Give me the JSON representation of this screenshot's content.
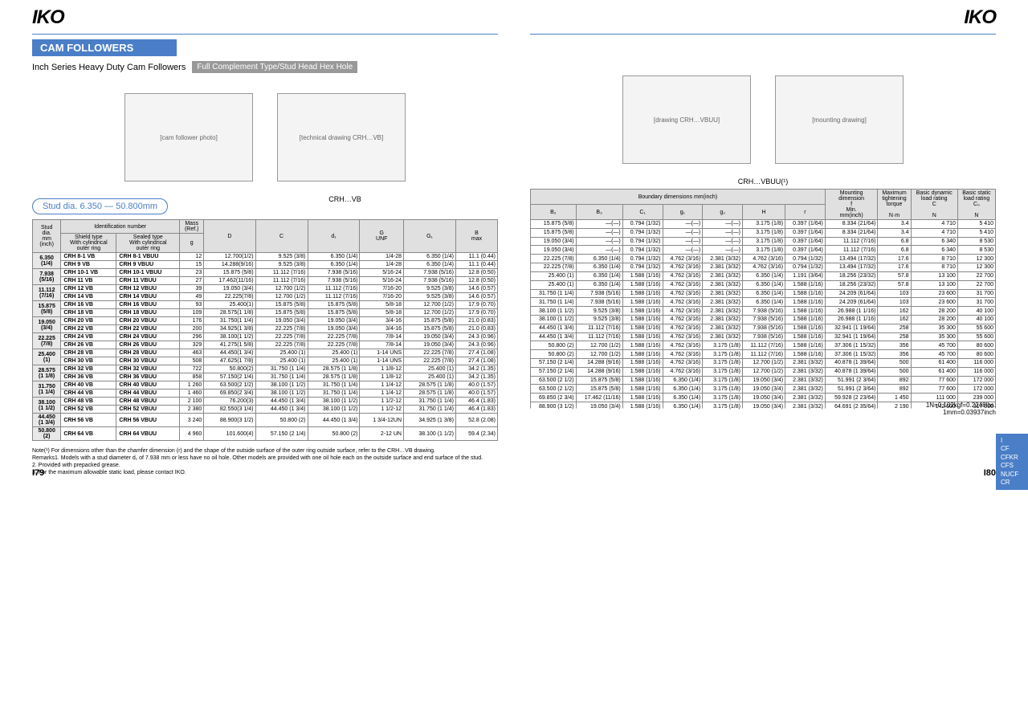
{
  "logo": "IKO",
  "title": "CAM FOLLOWERS",
  "subtitle1": "Inch Series Heavy Duty Cam Followers",
  "subtitle2": "Full Complement Type/Stud Head Hex Hole",
  "rangeLabel": "Stud dia. 6.350 — 50.800mm",
  "diagLabelL": "CRH…VB",
  "diagLabelR": "CRH…VBUU(¹)",
  "headers_left": {
    "stud": "Stud\ndia.\nmm\n(inch)",
    "ident": "Identification number",
    "shield": "Shield type\nWith cylindrical\nouter ring",
    "sealed": "Sealed type\nWith cylindrical\nouter ring",
    "mass": "Mass\n(Ref.)",
    "g": "g",
    "D": "D",
    "C": "C",
    "d1": "d₁",
    "G": "G\nUNF",
    "G1": "G₁",
    "Bmax": "B\nmax"
  },
  "headers_right": {
    "bound": "Boundary dimensions   mm(inch)",
    "B2": "B₂",
    "B3": "B₃",
    "C1": "C₁",
    "g1": "g₁",
    "g2": "g₂",
    "H": "H",
    "r": "r",
    "mount": "Mounting\ndimension\nf\nMin.\nmm(inch)",
    "torque": "Maximum\ntightening\ntorque\n\nN·m",
    "Cdyn": "Basic dynamic\nload rating\nC\n\nN",
    "C0": "Basic static\nload rating\nC₀\n\nN"
  },
  "rows": [
    {
      "stud": "6.350",
      "studIn": "(1/4)",
      "pnA": "CRH 8-1 VB",
      "pnB": "CRH 8-1 VBUU",
      "g": "12",
      "D": "12.700(1/2)",
      "C": "9.525 (3/8)",
      "d1": "6.350 (1/4)",
      "G": "1/4-28",
      "G1": "6.350 (1/4)",
      "B": "11.1 (0.44)",
      "B2": "15.875 (5/8)",
      "B3": "—(—)",
      "C1": "0.794 (1/32)",
      "g1": "—(—)",
      "g2": "—(—)",
      "H": "3.175 (1/8)",
      "r": "0.397 (1/64)",
      "f": "8.334 (21/64)",
      "Nm": "3.4",
      "Cd": "4 710",
      "C0": "5 410"
    },
    {
      "stud": "",
      "studIn": "",
      "pnA": "CRH 9 VB",
      "pnB": "CRH 9 VBUU",
      "g": "15",
      "D": "14.288(9/16)",
      "C": "9.525 (3/8)",
      "d1": "6.350 (1/4)",
      "G": "1/4-28",
      "G1": "6.350 (1/4)",
      "B": "11.1 (0.44)",
      "B2": "15.875 (5/8)",
      "B3": "—(—)",
      "C1": "0.794 (1/32)",
      "g1": "—(—)",
      "g2": "—(—)",
      "H": "3.175 (1/8)",
      "r": "0.397 (1/64)",
      "f": "8.334 (21/64)",
      "Nm": "3.4",
      "Cd": "4 710",
      "C0": "5 410"
    },
    {
      "stud": "7.938",
      "studIn": "(5/16)",
      "pnA": "CRH 10-1 VB",
      "pnB": "CRH 10-1 VBUU",
      "g": "23",
      "D": "15.875 (5/8)",
      "C": "11.112 (7/16)",
      "d1": "7.938 (5/16)",
      "G": "5/16-24",
      "G1": "7.938 (5/16)",
      "B": "12.8 (0.50)",
      "B2": "19.050 (3/4)",
      "B3": "—(—)",
      "C1": "0.794 (1/32)",
      "g1": "—(—)",
      "g2": "—(—)",
      "H": "3.175 (1/8)",
      "r": "0.397 (1/64)",
      "f": "11.112 (7/16)",
      "Nm": "6.8",
      "Cd": "6 340",
      "C0": "8 530"
    },
    {
      "stud": "",
      "studIn": "",
      "pnA": "CRH 11 VB",
      "pnB": "CRH 11 VBUU",
      "g": "27",
      "D": "17.462(11/16)",
      "C": "11.112 (7/16)",
      "d1": "7.938 (5/16)",
      "G": "5/16-24",
      "G1": "7.938 (5/16)",
      "B": "12.8 (0.50)",
      "B2": "19.050 (3/4)",
      "B3": "—(—)",
      "C1": "0.794 (1/32)",
      "g1": "—(—)",
      "g2": "—(—)",
      "H": "3.175 (1/8)",
      "r": "0.397 (1/64)",
      "f": "11.112 (7/16)",
      "Nm": "6.8",
      "Cd": "6 340",
      "C0": "8 530"
    },
    {
      "stud": "11.112",
      "studIn": "(7/16)",
      "pnA": "CRH 12 VB",
      "pnB": "CRH 12 VBUU",
      "g": "39",
      "D": "19.050 (3/4)",
      "C": "12.700 (1/2)",
      "d1": "11.112 (7/16)",
      "G": "7/16-20",
      "G1": "9.525 (3/8)",
      "B": "14.6 (0.57)",
      "B2": "22.225 (7/8)",
      "B3": "6.350 (1/4)",
      "C1": "0.794 (1/32)",
      "g1": "4.762 (3/16)",
      "g2": "2.381 (3/32)",
      "H": "4.762 (3/16)",
      "r": "0.794 (1/32)",
      "f": "13.494 (17/32)",
      "Nm": "17.6",
      "Cd": "8 710",
      "C0": "12 300"
    },
    {
      "stud": "",
      "studIn": "",
      "pnA": "CRH 14 VB",
      "pnB": "CRH 14 VBUU",
      "g": "49",
      "D": "22.225(7/8)",
      "C": "12.700 (1/2)",
      "d1": "11.112 (7/16)",
      "G": "7/16-20",
      "G1": "9.525 (3/8)",
      "B": "14.6 (0.57)",
      "B2": "22.225 (7/8)",
      "B3": "6.350 (1/4)",
      "C1": "0.794 (1/32)",
      "g1": "4.762 (3/16)",
      "g2": "2.381 (3/32)",
      "H": "4.762 (3/16)",
      "r": "0.794 (1/32)",
      "f": "13.494 (17/32)",
      "Nm": "17.6",
      "Cd": "8 710",
      "C0": "12 300"
    },
    {
      "stud": "15.875",
      "studIn": "(5/8)",
      "pnA": "CRH 16 VB",
      "pnB": "CRH 16 VBUU",
      "g": "93",
      "D": "25.400(1)",
      "C": "15.875 (5/8)",
      "d1": "15.875 (5/8)",
      "G": "5/8-18",
      "G1": "12.700 (1/2)",
      "B": "17.9 (0.70)",
      "B2": "25.400 (1)",
      "B3": "6.350 (1/4)",
      "C1": "1.588 (1/16)",
      "g1": "4.762 (3/16)",
      "g2": "2.381 (3/32)",
      "H": "6.350 (1/4)",
      "r": "1.191 (3/64)",
      "f": "18.256 (23/32)",
      "Nm": "57.8",
      "Cd": "13 100",
      "C0": "22 700"
    },
    {
      "stud": "",
      "studIn": "",
      "pnA": "CRH 18 VB",
      "pnB": "CRH 18 VBUU",
      "g": "109",
      "D": "28.575(1 1/8)",
      "C": "15.875 (5/8)",
      "d1": "15.875 (5/8)",
      "G": "5/8-18",
      "G1": "12.700 (1/2)",
      "B": "17.9 (0.70)",
      "B2": "25.400 (1)",
      "B3": "6.350 (1/4)",
      "C1": "1.588 (1/16)",
      "g1": "4.762 (3/16)",
      "g2": "2.381 (3/32)",
      "H": "6.350 (1/4)",
      "r": "1.588 (1/16)",
      "f": "18.256 (23/32)",
      "Nm": "57.8",
      "Cd": "13 100",
      "C0": "22 700"
    },
    {
      "stud": "19.050",
      "studIn": "(3/4)",
      "pnA": "CRH 20 VB",
      "pnB": "CRH 20 VBUU",
      "g": "176",
      "D": "31.750(1 1/4)",
      "C": "19.050 (3/4)",
      "d1": "19.050 (3/4)",
      "G": "3/4-16",
      "G1": "15.875 (5/8)",
      "B": "21.0 (0.83)",
      "B2": "31.750 (1 1/4)",
      "B3": "7.938 (5/16)",
      "C1": "1.588 (1/16)",
      "g1": "4.762 (3/16)",
      "g2": "2.381 (3/32)",
      "H": "6.350 (1/4)",
      "r": "1.588 (1/16)",
      "f": "24.209 (61/64)",
      "Nm": "103",
      "Cd": "23 600",
      "C0": "31 700"
    },
    {
      "stud": "",
      "studIn": "",
      "pnA": "CRH 22 VB",
      "pnB": "CRH 22 VBUU",
      "g": "200",
      "D": "34.925(1 3/8)",
      "C": "22.225 (7/8)",
      "d1": "19.050 (3/4)",
      "G": "3/4-16",
      "G1": "15.875 (5/8)",
      "B": "21.0 (0.83)",
      "B2": "31.750 (1 1/4)",
      "B3": "7.938 (5/16)",
      "C1": "1.588 (1/16)",
      "g1": "4.762 (3/16)",
      "g2": "2.381 (3/32)",
      "H": "6.350 (1/4)",
      "r": "1.588 (1/16)",
      "f": "24.209 (61/64)",
      "Nm": "103",
      "Cd": "23 600",
      "C0": "31 700"
    },
    {
      "stud": "22.225",
      "studIn": "(7/8)",
      "pnA": "CRH 24 VB",
      "pnB": "CRH 24 VBUU",
      "g": "296",
      "D": "38.100(1 1/2)",
      "C": "22.225 (7/8)",
      "d1": "22.225 (7/8)",
      "G": "7/8-14",
      "G1": "19.050 (3/4)",
      "B": "24.3 (0.96)",
      "B2": "38.100 (1 1/2)",
      "B3": "9.525 (3/8)",
      "C1": "1.588 (1/16)",
      "g1": "4.762 (3/16)",
      "g2": "2.381 (3/32)",
      "H": "7.938 (5/16)",
      "r": "1.588 (1/16)",
      "f": "26.988 (1 1/16)",
      "Nm": "162",
      "Cd": "28 200",
      "C0": "40 100"
    },
    {
      "stud": "",
      "studIn": "",
      "pnA": "CRH 26 VB",
      "pnB": "CRH 26 VBUU",
      "g": "329",
      "D": "41.275(1 5/8)",
      "C": "22.225 (7/8)",
      "d1": "22.225 (7/8)",
      "G": "7/8-14",
      "G1": "19.050 (3/4)",
      "B": "24.3 (0.96)",
      "B2": "38.100 (1 1/2)",
      "B3": "9.525 (3/8)",
      "C1": "1.588 (1/16)",
      "g1": "4.762 (3/16)",
      "g2": "2.381 (3/32)",
      "H": "7.938 (5/16)",
      "r": "1.588 (1/16)",
      "f": "26.988 (1 1/16)",
      "Nm": "162",
      "Cd": "28 200",
      "C0": "40 100"
    },
    {
      "stud": "25.400",
      "studIn": "(1)",
      "pnA": "CRH 28 VB",
      "pnB": "CRH 28 VBUU",
      "g": "463",
      "D": "44.450(1 3/4)",
      "C": "25.400 (1)",
      "d1": "25.400 (1)",
      "G": "1-14 UNS",
      "G1": "22.225 (7/8)",
      "B": "27.4 (1.08)",
      "B2": "44.450 (1 3/4)",
      "B3": "11.112 (7/16)",
      "C1": "1.588 (1/16)",
      "g1": "4.762 (3/16)",
      "g2": "2.381 (3/32)",
      "H": "7.938 (5/16)",
      "r": "1.588 (1/16)",
      "f": "32.941 (1 19/64)",
      "Nm": "258",
      "Cd": "35 300",
      "C0": "55 600"
    },
    {
      "stud": "",
      "studIn": "",
      "pnA": "CRH 30 VB",
      "pnB": "CRH 30 VBUU",
      "g": "508",
      "D": "47.625(1 7/8)",
      "C": "25.400 (1)",
      "d1": "25.400 (1)",
      "G": "1-14 UNS",
      "G1": "22.225 (7/8)",
      "B": "27.4 (1.08)",
      "B2": "44.450 (1 3/4)",
      "B3": "11.112 (7/16)",
      "C1": "1.588 (1/16)",
      "g1": "4.762 (3/16)",
      "g2": "2.381 (3/32)",
      "H": "7.938 (5/16)",
      "r": "1.588 (1/16)",
      "f": "32.941 (1 19/64)",
      "Nm": "258",
      "Cd": "35 300",
      "C0": "55 600"
    },
    {
      "stud": "28.575",
      "studIn": "(1 1/8)",
      "pnA": "CRH 32 VB",
      "pnB": "CRH 32 VBUU",
      "g": "722",
      "D": "50.800(2)",
      "C": "31.750 (1 1/4)",
      "d1": "28.575 (1 1/8)",
      "G": "1 1/8-12",
      "G1": "25.400 (1)",
      "B": "34.2 (1.35)",
      "B2": "50.800 (2)",
      "B3": "12.700 (1/2)",
      "C1": "1.588 (1/16)",
      "g1": "4.762 (3/16)",
      "g2": "3.175 (1/8)",
      "H": "11.112 (7/16)",
      "r": "1.588 (1/16)",
      "f": "37.306 (1 15/32)",
      "Nm": "356",
      "Cd": "45 700",
      "C0": "80 600"
    },
    {
      "stud": "",
      "studIn": "",
      "pnA": "CRH 36 VB",
      "pnB": "CRH 36 VBUU",
      "g": "858",
      "D": "57.150(2 1/4)",
      "C": "31.750 (1 1/4)",
      "d1": "28.575 (1 1/8)",
      "G": "1 1/8-12",
      "G1": "25.400 (1)",
      "B": "34.2 (1.35)",
      "B2": "50.800 (2)",
      "B3": "12.700 (1/2)",
      "C1": "1.588 (1/16)",
      "g1": "4.762 (3/16)",
      "g2": "3.175 (1/8)",
      "H": "11.112 (7/16)",
      "r": "1.588 (1/16)",
      "f": "37.306 (1 15/32)",
      "Nm": "356",
      "Cd": "45 700",
      "C0": "80 600"
    },
    {
      "stud": "31.750",
      "studIn": "(1 1/4)",
      "pnA": "CRH 40 VB",
      "pnB": "CRH 40 VBUU",
      "g": "1 260",
      "D": "63.500(2 1/2)",
      "C": "38.100 (1 1/2)",
      "d1": "31.750 (1 1/4)",
      "G": "1 1/4-12",
      "G1": "28.575 (1 1/8)",
      "B": "40.0 (1.57)",
      "B2": "57.150 (2 1/4)",
      "B3": "14.288 (9/16)",
      "C1": "1.588 (1/16)",
      "g1": "4.762 (3/16)",
      "g2": "3.175 (1/8)",
      "H": "12.700 (1/2)",
      "r": "2.381 (3/32)",
      "f": "40.878 (1 39/64)",
      "Nm": "500",
      "Cd": "61 400",
      "C0": "116 000"
    },
    {
      "stud": "",
      "studIn": "",
      "pnA": "CRH 44 VB",
      "pnB": "CRH 44 VBUU",
      "g": "1 460",
      "D": "69.850(2 3/4)",
      "C": "38.100 (1 1/2)",
      "d1": "31.750 (1 1/4)",
      "G": "1 1/4-12",
      "G1": "28.575 (1 1/8)",
      "B": "40.0 (1.57)",
      "B2": "57.150 (2 1/4)",
      "B3": "14.288 (9/16)",
      "C1": "1.588 (1/16)",
      "g1": "4.762 (3/16)",
      "g2": "3.175 (1/8)",
      "H": "12.700 (1/2)",
      "r": "2.381 (3/32)",
      "f": "40.878 (1 39/64)",
      "Nm": "500",
      "Cd": "61 400",
      "C0": "116 000"
    },
    {
      "stud": "38.100",
      "studIn": "(1 1/2)",
      "pnA": "CRH 48 VB",
      "pnB": "CRH 48 VBUU",
      "g": "2 100",
      "D": "76.200(3)",
      "C": "44.450 (1 3/4)",
      "d1": "38.100 (1 1/2)",
      "G": "1 1/2-12",
      "G1": "31.750 (1 1/4)",
      "B": "46.4 (1.83)",
      "B2": "63.500 (2 1/2)",
      "B3": "15.875 (5/8)",
      "C1": "1.588 (1/16)",
      "g1": "6.350 (1/4)",
      "g2": "3.175 (1/8)",
      "H": "19.050 (3/4)",
      "r": "2.381 (3/32)",
      "f": "51.991 (2 3/64)",
      "Nm": "892",
      "Cd": "77 600",
      "C0": "172 000"
    },
    {
      "stud": "",
      "studIn": "",
      "pnA": "CRH 52 VB",
      "pnB": "CRH 52 VBUU",
      "g": "2 380",
      "D": "82.550(3 1/4)",
      "C": "44.450 (1 3/4)",
      "d1": "38.100 (1 1/2)",
      "G": "1 1/2-12",
      "G1": "31.750 (1 1/4)",
      "B": "46.4 (1.83)",
      "B2": "63.500 (2 1/2)",
      "B3": "15.875 (5/8)",
      "C1": "1.588 (1/16)",
      "g1": "6.350 (1/4)",
      "g2": "3.175 (1/8)",
      "H": "19.050 (3/4)",
      "r": "2.381 (3/32)",
      "f": "51.991 (2 3/64)",
      "Nm": "892",
      "Cd": "77 600",
      "C0": "172 000"
    },
    {
      "stud": "44.450",
      "studIn": "(1 3/4)",
      "pnA": "CRH 56 VB",
      "pnB": "CRH 56 VBUU",
      "g": "3 240",
      "D": "88.900(3 1/2)",
      "C": "50.800 (2)",
      "d1": "44.450 (1 3/4)",
      "G": "1 3/4-12UN",
      "G1": "34.925 (1 3/8)",
      "B": "52.8 (2.08)",
      "B2": "69.850 (2 3/4)",
      "B3": "17.462 (11/16)",
      "C1": "1.588 (1/16)",
      "g1": "6.350 (1/4)",
      "g2": "3.175 (1/8)",
      "H": "19.050 (3/4)",
      "r": "2.381 (3/32)",
      "f": "59.928 (2 23/64)",
      "Nm": "1 450",
      "Cd": "111 000",
      "C0": "239 000"
    },
    {
      "stud": "50.800",
      "studIn": "(2)",
      "pnA": "CRH 64 VB",
      "pnB": "CRH 64 VBUU",
      "g": "4 960",
      "D": "101.600(4)",
      "C": "57.150 (2 1/4)",
      "d1": "50.800 (2)",
      "G": "2-12 UN",
      "G1": "38.100 (1 1/2)",
      "B": "59.4 (2.34)",
      "B2": "88.900 (3 1/2)",
      "B3": "19.050 (3/4)",
      "C1": "1.588 (1/16)",
      "g1": "6.350 (1/4)",
      "g2": "3.175 (1/8)",
      "H": "19.050 (3/4)",
      "r": "2.381 (3/32)",
      "f": "64.691 (2 35/64)",
      "Nm": "2 190",
      "Cd": "142 000",
      "C0": "317 000"
    }
  ],
  "notes": [
    "Note(¹)   For dimensions other than the chamfer dimension (r) and the shape of the outside surface of the outer ring outside surface, refer to the CRH…VB drawing.",
    "Remarks1. Models with a stud diameter d₁ of 7.938 mm or less have no oil hole. Other models are provided with one oil hole each on the outside surface and end surface of the stud.",
    "2. Provided with prepacked grease.",
    "3. For the maximum allowable static load, please contact IKO."
  ],
  "unitNote": "1N=0.102kgf=0.2248lbs.\n1mm=0.03937inch",
  "sideTab": "I\nCF\nCFKR\nCFS\nNUCF\nCR",
  "pageL": "I79",
  "pageR": "I80"
}
